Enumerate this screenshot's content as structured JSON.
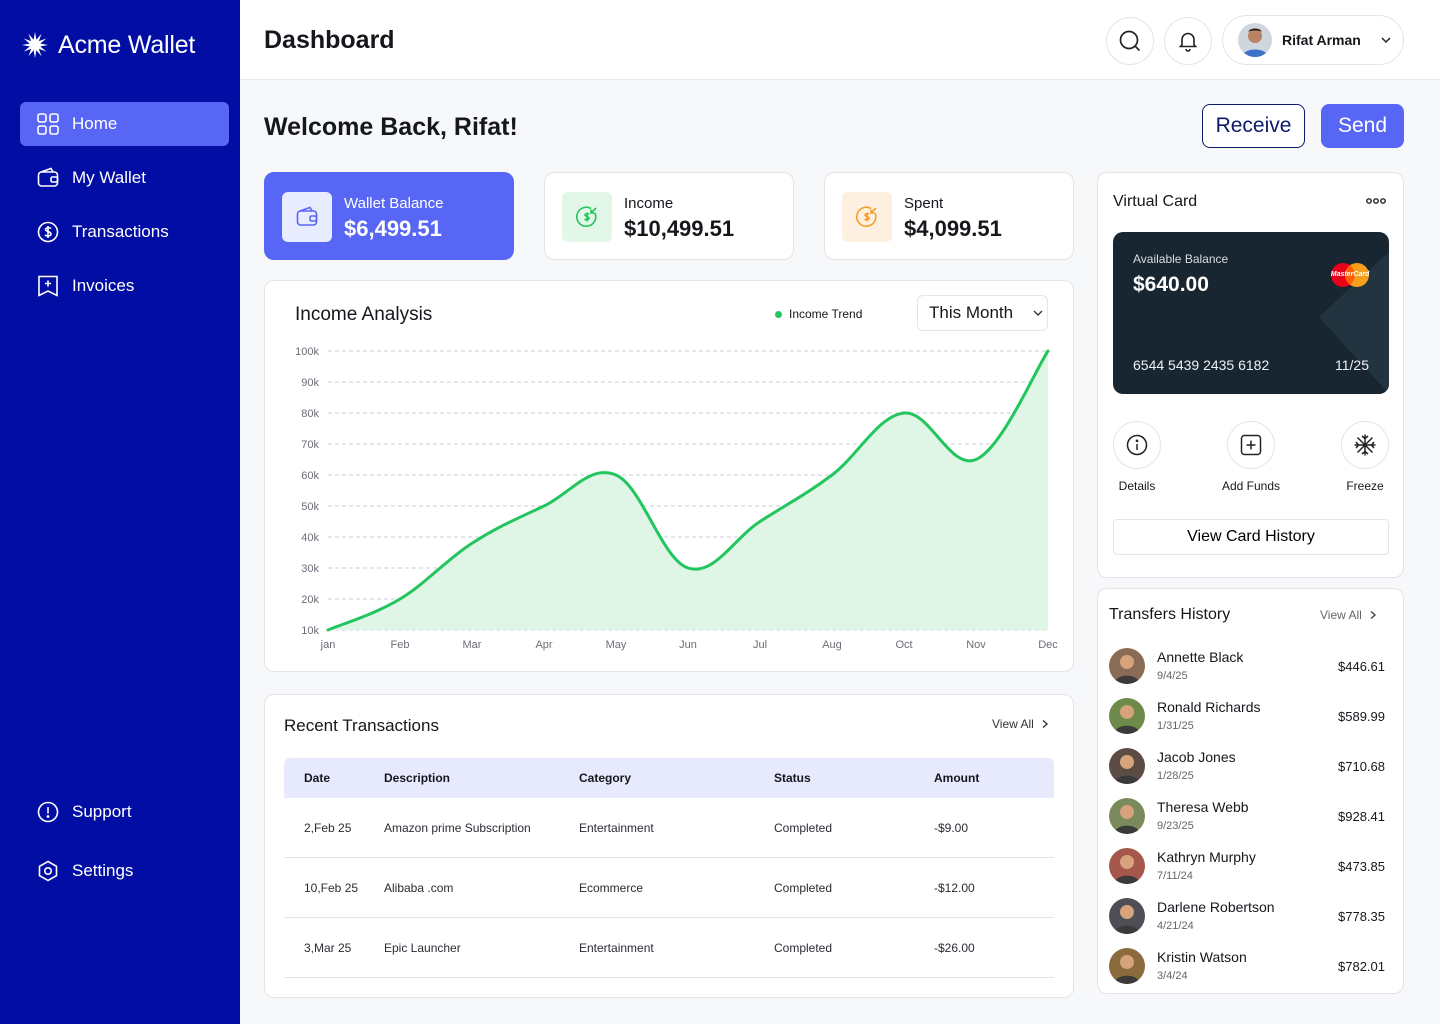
{
  "brand": {
    "name": "Acme Wallet"
  },
  "sidebar": {
    "items": [
      {
        "label": "Home",
        "icon": "grid-icon",
        "active": true
      },
      {
        "label": "My Wallet",
        "icon": "wallet-icon"
      },
      {
        "label": "Transactions",
        "icon": "dollar-icon"
      },
      {
        "label": "Invoices",
        "icon": "invoice-icon"
      }
    ],
    "bottom": [
      {
        "label": "Support",
        "icon": "alert-icon"
      },
      {
        "label": "Settings",
        "icon": "settings-icon"
      }
    ]
  },
  "header": {
    "title": "Dashboard",
    "user": {
      "name": "Rifat Arman"
    }
  },
  "welcome": "Welcome Back, Rifat!",
  "actions": {
    "receive": "Receive",
    "send": "Send"
  },
  "stats": [
    {
      "label": "Wallet Balance",
      "value": "$6,499.51"
    },
    {
      "label": "Income",
      "value": "$10,499.51"
    },
    {
      "label": "Spent",
      "value": "$4,099.51"
    }
  ],
  "income_analysis": {
    "title": "Income Analysis",
    "legend": "Income Trend",
    "period": "This Month"
  },
  "chart_data": {
    "type": "area",
    "title": "Income Analysis",
    "categories": [
      "jan",
      "Feb",
      "Mar",
      "Apr",
      "May",
      "Jun",
      "Jul",
      "Aug",
      "Oct",
      "Nov",
      "Dec"
    ],
    "series": [
      {
        "name": "Income Trend",
        "values": [
          10,
          20,
          38,
          50,
          60,
          30,
          45,
          60,
          80,
          65,
          100
        ]
      }
    ],
    "y_ticks": [
      "10k",
      "20k",
      "30k",
      "40k",
      "50k",
      "60k",
      "70k",
      "80k",
      "90k",
      "100k"
    ],
    "ylim": [
      10,
      100
    ],
    "grid": true,
    "legend_position": "top-right",
    "color": "#22c55e"
  },
  "recent_transactions": {
    "title": "Recent Transactions",
    "view_all": "View All",
    "columns": [
      "Date",
      "Description",
      "Category",
      "Status",
      "Amount"
    ],
    "rows": [
      {
        "date": "2,Feb 25",
        "description": "Amazon prime Subscription",
        "category": "Entertainment",
        "status": "Completed",
        "amount": "-$9.00"
      },
      {
        "date": "10,Feb 25",
        "description": "Alibaba .com",
        "category": "Ecommerce",
        "status": "Completed",
        "amount": "-$12.00"
      },
      {
        "date": "3,Mar 25",
        "description": "Epic Launcher",
        "category": "Entertainment",
        "status": "Completed",
        "amount": "-$26.00"
      }
    ]
  },
  "virtual_card": {
    "title": "Virtual Card",
    "available_label": "Available Balance",
    "balance": "$640.00",
    "number": "6544 5439 2435 6182",
    "expiry": "11/25",
    "network": "MasterCard",
    "actions": [
      {
        "label": "Details",
        "icon": "info-icon"
      },
      {
        "label": "Add Funds",
        "icon": "add-icon"
      },
      {
        "label": "Freeze",
        "icon": "snowflake-icon"
      }
    ],
    "history_button": "View Card History"
  },
  "transfers": {
    "title": "Transfers History",
    "view_all": "View All",
    "items": [
      {
        "name": "Annette Black",
        "date": "9/4/25",
        "amount": "$446.61",
        "color": "#8a6b55"
      },
      {
        "name": "Ronald Richards",
        "date": "1/31/25",
        "amount": "$589.99",
        "color": "#6e8a4a"
      },
      {
        "name": "Jacob Jones",
        "date": "1/28/25",
        "amount": "$710.68",
        "color": "#5b4c44"
      },
      {
        "name": "Theresa Webb",
        "date": "9/23/25",
        "amount": "$928.41",
        "color": "#7a8a5a"
      },
      {
        "name": "Kathryn Murphy",
        "date": "7/11/24",
        "amount": "$473.85",
        "color": "#a4574a"
      },
      {
        "name": "Darlene Robertson",
        "date": "4/21/24",
        "amount": "$778.35",
        "color": "#4d4f55"
      },
      {
        "name": "Kristin Watson",
        "date": "3/4/24",
        "amount": "$782.01",
        "color": "#8b6a3e"
      }
    ]
  }
}
